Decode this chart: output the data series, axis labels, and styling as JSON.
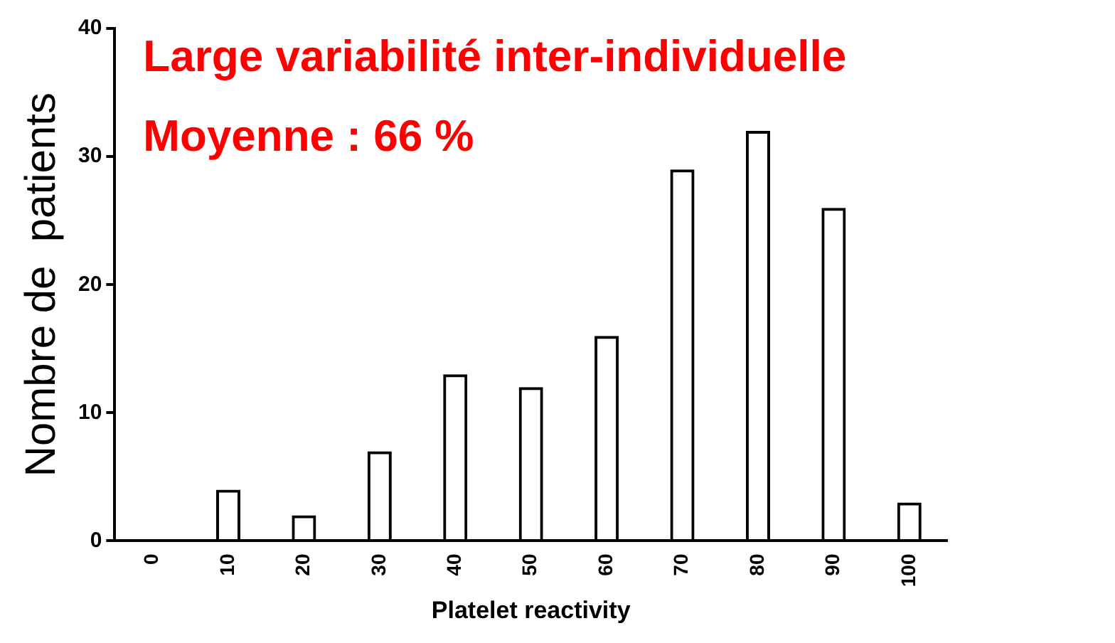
{
  "chart_data": {
    "type": "bar",
    "xlabel": "Platelet reactivity",
    "ylabel": "Nombre de  patients",
    "annotations": [
      "Large variabilité inter-individuelle",
      "Moyenne : 66 %"
    ],
    "categories": [
      "0",
      "10",
      "20",
      "30",
      "40",
      "50",
      "60",
      "70",
      "80",
      "90",
      "100"
    ],
    "values": [
      0,
      4,
      2,
      7,
      13,
      12,
      16,
      29,
      32,
      26,
      3
    ],
    "color": "#000000",
    "ylim": [
      0,
      40
    ],
    "yticks": [
      0,
      10,
      20,
      30,
      40
    ],
    "grid": false,
    "legend": false
  }
}
